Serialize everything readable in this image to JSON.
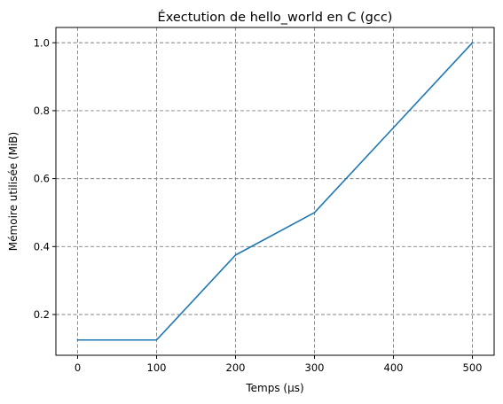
{
  "chart_data": {
    "type": "line",
    "title": "Éxectution de hello_world en C (gcc)",
    "xlabel": "Temps (µs)",
    "ylabel": "Mémoire utilisée (MiB)",
    "x": [
      0,
      100,
      200,
      300,
      400,
      500
    ],
    "series": [
      {
        "values": [
          0.125,
          0.125,
          0.375,
          0.5,
          0.75,
          1.0
        ],
        "color": "#1f77b4"
      }
    ],
    "xlim": [
      -27.5,
      527.5
    ],
    "ylim": [
      0.08,
      1.045
    ],
    "xticks": [
      0,
      100,
      200,
      300,
      400,
      500
    ],
    "xtick_labels": [
      "0",
      "100",
      "200",
      "300",
      "400",
      "500"
    ],
    "yticks": [
      0.2,
      0.4,
      0.6,
      0.8,
      1.0
    ],
    "ytick_labels": [
      "0.2",
      "0.4",
      "0.6",
      "0.8",
      "1.0"
    ],
    "grid": true,
    "grid_style": "dashed",
    "grid_color": "#808080",
    "legend": "none"
  }
}
